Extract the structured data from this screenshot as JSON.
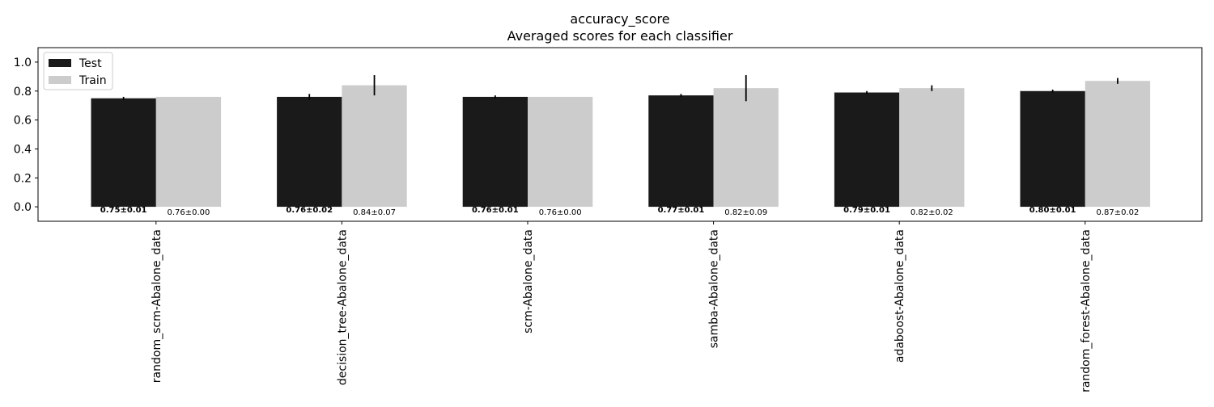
{
  "chart_data": {
    "type": "bar",
    "title": "accuracy_score",
    "subtitle": "Averaged scores for each classifier",
    "xlabel": "",
    "ylabel": "",
    "ylim": [
      -0.1,
      1.1
    ],
    "yticks": [
      0.0,
      0.2,
      0.4,
      0.6,
      0.8,
      1.0
    ],
    "ytick_labels": [
      "0.0",
      "0.2",
      "0.4",
      "0.6",
      "0.8",
      "1.0"
    ],
    "grid": false,
    "legend_position": "top-left",
    "categories": [
      "random_scm-Abalone_data",
      "decision_tree-Abalone_data",
      "scm-Abalone_data",
      "samba-Abalone_data",
      "adaboost-Abalone_data",
      "random_forest-Abalone_data"
    ],
    "series": [
      {
        "name": "Test",
        "color": "#1a1a1a",
        "values": [
          0.75,
          0.76,
          0.76,
          0.77,
          0.79,
          0.8
        ],
        "errors": [
          0.01,
          0.02,
          0.01,
          0.01,
          0.01,
          0.01
        ],
        "labels": [
          "0.75±0.01",
          "0.76±0.02",
          "0.76±0.01",
          "0.77±0.01",
          "0.79±0.01",
          "0.80±0.01"
        ]
      },
      {
        "name": "Train",
        "color": "#cccccc",
        "values": [
          0.76,
          0.84,
          0.76,
          0.82,
          0.82,
          0.87
        ],
        "errors": [
          0.0,
          0.07,
          0.0,
          0.09,
          0.02,
          0.02
        ],
        "labels": [
          "0.76±0.00",
          "0.84±0.07",
          "0.76±0.00",
          "0.82±0.09",
          "0.82±0.02",
          "0.87±0.02"
        ]
      }
    ]
  }
}
